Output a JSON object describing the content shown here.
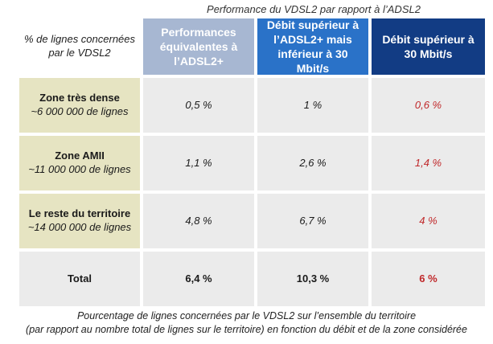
{
  "super_title": "Performance du VDSL2 par rapport à l’ADSL2",
  "header": {
    "corner_line1": "% de lignes concernées",
    "corner_line2": "par le VDSL2",
    "col1": [
      "Performances",
      "équivalentes à",
      "l’ADSL2+"
    ],
    "col2": [
      "Débit supérieur à",
      "l’ADSL2+ mais",
      "inférieur à 30 Mbit/s"
    ],
    "col3": [
      "Débit supérieur à",
      "30 Mbit/s"
    ],
    "colors": {
      "col1": "#a7b7d2",
      "col2": "#2a72c8",
      "col3": "#123c84"
    }
  },
  "rows": [
    {
      "name": "Zone très dense",
      "lines": "~6 000 000 de lignes",
      "v1": "0,5 %",
      "v2": "1 %",
      "v3": "0,6 %"
    },
    {
      "name": "Zone AMII",
      "lines": "~11 000 000 de lignes",
      "v1": "1,1 %",
      "v2": "2,6 %",
      "v3": "1,4 %"
    },
    {
      "name": "Le reste du territoire",
      "lines": "~14 000 000 de lignes",
      "v1": "4,8 %",
      "v2": "6,7 %",
      "v3": "4 %"
    }
  ],
  "total": {
    "label": "Total",
    "v1": "6,4 %",
    "v2": "10,3 %",
    "v3": "6 %"
  },
  "caption": {
    "line1": "Pourcentage de lignes concernées par le VDSL2 sur l’ensemble du territoire",
    "line2": "(par rapport au nombre total de lignes sur le territoire) en fonction du débit et de la zone considérée"
  },
  "accent_red": "#c0282a",
  "zone_bg": "#e6e4c2",
  "value_bg": "#ebebeb"
}
